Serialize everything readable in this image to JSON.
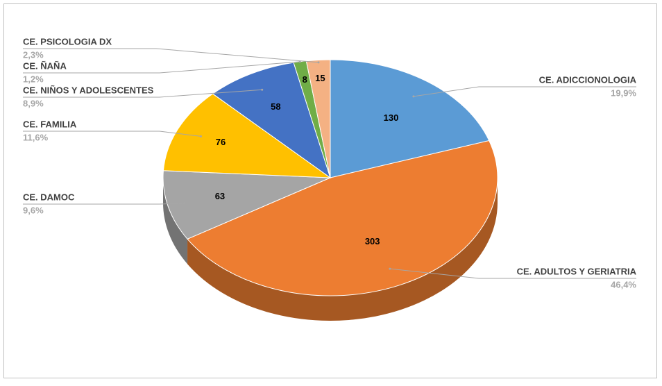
{
  "chart_data": {
    "type": "pie3d",
    "categories": [
      "CE. ADICCIONOLOGIA",
      "CE. ADULTOS Y GERIATRIA",
      "CE. DAMOC",
      "CE. FAMILIA",
      "CE. NIÑOS Y ADOLESCENTES",
      "CE. ÑAÑA",
      "CE. PSICOLOGIA DX"
    ],
    "values": [
      130,
      303,
      63,
      76,
      58,
      8,
      15
    ],
    "percentages": [
      {
        "value": 19.9,
        "label": "19,9%"
      },
      {
        "value": 46.4,
        "label": "46,4%"
      },
      {
        "value": 9.6,
        "label": "9,6%"
      },
      {
        "value": 11.6,
        "label": "11,6%"
      },
      {
        "value": 8.9,
        "label": "8,9%"
      },
      {
        "value": 1.2,
        "label": "1,2%"
      },
      {
        "value": 2.3,
        "label": "2,3%"
      }
    ],
    "colors": [
      "#5b9bd5",
      "#ed7d31",
      "#a5a5a5",
      "#ffc000",
      "#4472c4",
      "#70ad47",
      "#f4b183"
    ]
  }
}
